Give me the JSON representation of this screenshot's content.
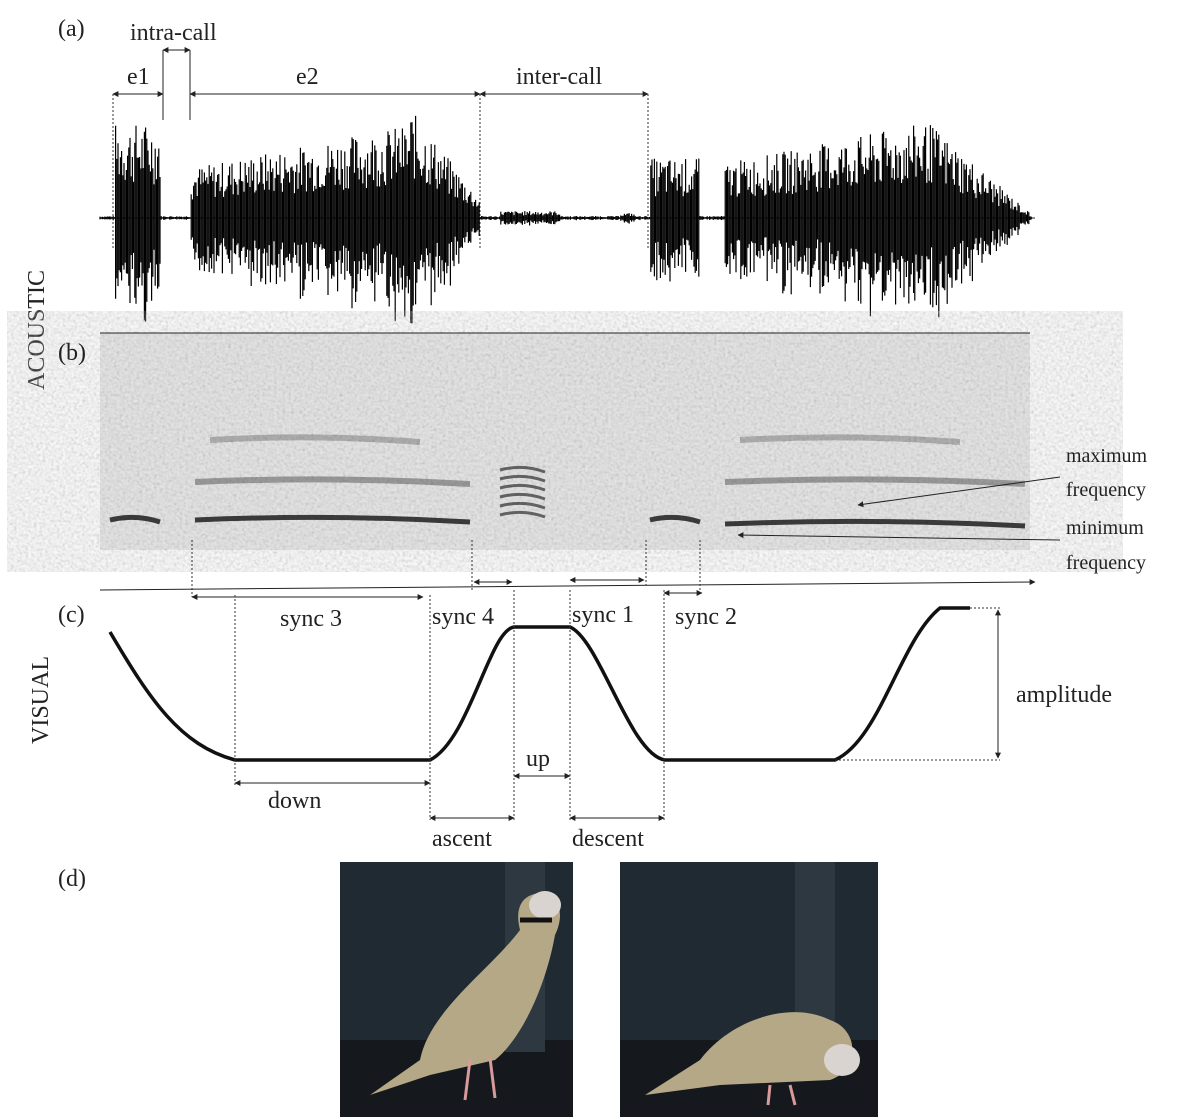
{
  "panels": {
    "a": "(a)",
    "b": "(b)",
    "c": "(c)",
    "d": "(d)"
  },
  "acoustic": {
    "label": "ACOUSTIC",
    "intra_call": "intra-call",
    "e1": "e1",
    "e2": "e2",
    "inter_call": "inter-call",
    "maximum_frequency": [
      "maximum",
      "frequency"
    ],
    "minimum_frequency": [
      "minimum",
      "frequency"
    ]
  },
  "sync": {
    "sync3": "sync 3",
    "sync4": "sync 4",
    "sync1": "sync 1",
    "sync2": "sync 2"
  },
  "visual": {
    "label": "VISUAL",
    "amplitude": "amplitude",
    "up": "up",
    "down": "down",
    "ascent": "ascent",
    "descent": "descent"
  }
}
